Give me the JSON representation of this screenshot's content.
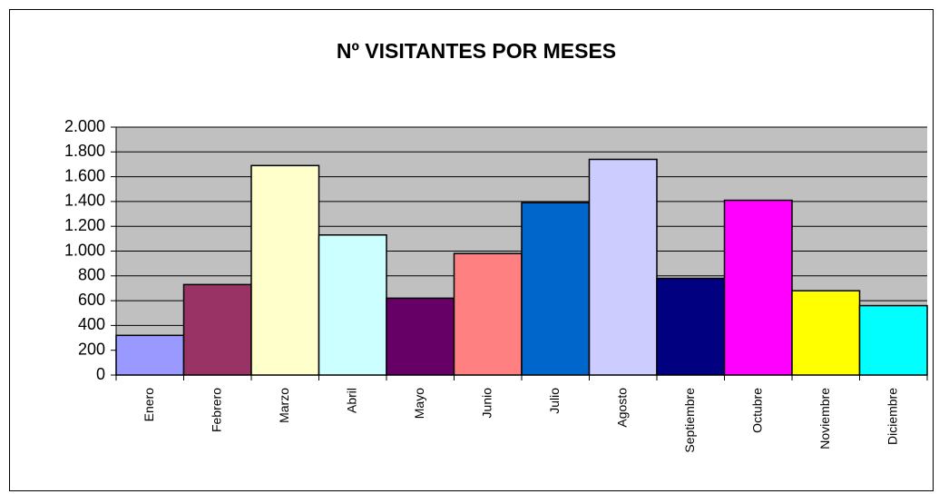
{
  "chart_data": {
    "type": "bar",
    "title": "Nº VISITANTES POR MESES",
    "categories": [
      "Enero",
      "Febrero",
      "Marzo",
      "Abril",
      "Mayo",
      "Junio",
      "Julio",
      "Agosto",
      "Septiembre",
      "Octubre",
      "Noviembre",
      "Diciembre"
    ],
    "values": [
      320,
      730,
      1690,
      1130,
      620,
      980,
      1390,
      1740,
      780,
      1410,
      680,
      560
    ],
    "colors": [
      "#9999ff",
      "#993366",
      "#ffffcc",
      "#ccffff",
      "#660066",
      "#ff8080",
      "#0066cc",
      "#ccccff",
      "#000080",
      "#ff00ff",
      "#ffff00",
      "#00ffff"
    ],
    "ylim": [
      0,
      2000
    ],
    "yticks": [
      0,
      200,
      400,
      600,
      800,
      {
        "value": 1000,
        "label": "1.000"
      },
      {
        "value": 1200,
        "label": "1.200"
      },
      {
        "value": 1400,
        "label": "1.400"
      },
      {
        "value": 1600,
        "label": "1.600"
      },
      {
        "value": 1800,
        "label": "1.800"
      },
      {
        "value": 2000,
        "label": "2.000"
      }
    ],
    "grid": true
  }
}
